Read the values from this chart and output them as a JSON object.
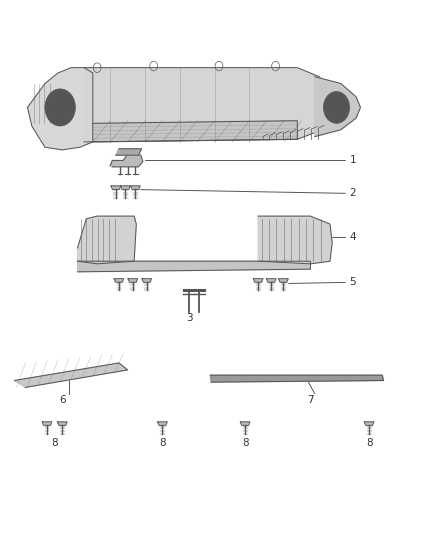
{
  "background_color": "#ffffff",
  "figure_width": 4.38,
  "figure_height": 5.33,
  "dpi": 100,
  "line_color": "#555555",
  "text_color": "#333333",
  "line_width": 0.7
}
